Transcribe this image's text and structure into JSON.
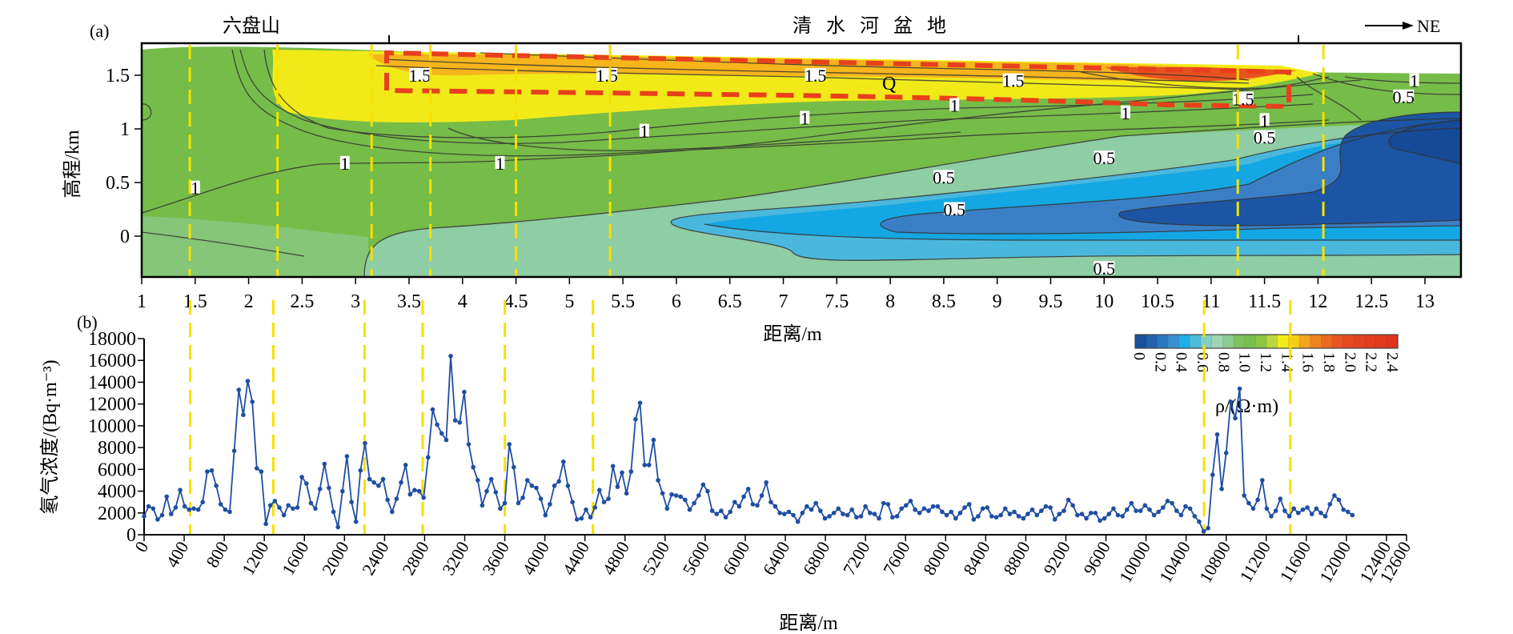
{
  "chart_data": [
    {
      "id": "a",
      "type": "heatmap",
      "panel_label": "(a)",
      "title": "",
      "region_labels": [
        "六盘山",
        "清 水 河 盆 地"
      ],
      "direction_label": "NE",
      "xlabel": "距离/m",
      "ylabel": "高程/km",
      "xlim": [
        1,
        13.33
      ],
      "ylim": [
        -0.38,
        1.8
      ],
      "xticks": [
        "1",
        "1.5",
        "2",
        "2.5",
        "3",
        "3.5",
        "4",
        "4.5",
        "5",
        "5.5",
        "6",
        "6.5",
        "7",
        "7.5",
        "8",
        "8.5",
        "9",
        "9.5",
        "10",
        "10.5",
        "11",
        "11.5",
        "12",
        "12.5",
        "13"
      ],
      "yticks": [
        "0",
        "0.5",
        "1",
        "1.5"
      ],
      "contour_labels": [
        {
          "x": 1.5,
          "y": 0.45,
          "text": "1"
        },
        {
          "x": 2.9,
          "y": 0.68,
          "text": "1"
        },
        {
          "x": 3.6,
          "y": 1.5,
          "text": "1.5"
        },
        {
          "x": 4.35,
          "y": 0.68,
          "text": "1"
        },
        {
          "x": 5.35,
          "y": 1.5,
          "text": "1.5"
        },
        {
          "x": 5.7,
          "y": 0.98,
          "text": "1"
        },
        {
          "x": 7.2,
          "y": 1.1,
          "text": "1"
        },
        {
          "x": 7.3,
          "y": 1.5,
          "text": "1.5"
        },
        {
          "x": 8.6,
          "y": 1.22,
          "text": "1"
        },
        {
          "x": 9.15,
          "y": 1.45,
          "text": "1.5"
        },
        {
          "x": 8.5,
          "y": 0.55,
          "text": "0.5"
        },
        {
          "x": 8.6,
          "y": 0.25,
          "text": "0.5"
        },
        {
          "x": 10.0,
          "y": 0.73,
          "text": "0.5"
        },
        {
          "x": 10.0,
          "y": -0.3,
          "text": "0.5"
        },
        {
          "x": 10.2,
          "y": 1.15,
          "text": "1"
        },
        {
          "x": 11.3,
          "y": 1.28,
          "text": "1.5"
        },
        {
          "x": 11.5,
          "y": 1.08,
          "text": "1"
        },
        {
          "x": 11.5,
          "y": 0.92,
          "text": "0.5"
        },
        {
          "x": 12.9,
          "y": 1.45,
          "text": "1"
        },
        {
          "x": 12.8,
          "y": 1.3,
          "text": "0.5"
        }
      ],
      "annotation_Q": {
        "x": 8.05,
        "y": 1.43,
        "text": "Q"
      },
      "dashed_box": {
        "x0": 3.3,
        "x1": 11.75,
        "note": "Quaternary layer outline"
      },
      "vertical_markers_x": [
        1.45,
        2.27,
        3.15,
        3.7,
        4.5,
        5.38,
        11.25,
        12.05
      ],
      "colorbar": {
        "label": "ρ/(Ω·m)",
        "ticks": [
          "0",
          "0.2",
          "0.4",
          "0.6",
          "0.8",
          "1.0",
          "1.2",
          "1.4",
          "1.6",
          "1.8",
          "2.0",
          "2.2",
          "2.4"
        ],
        "colors": [
          "#1a4f9c",
          "#2262ad",
          "#2a78c2",
          "#3b8fd0",
          "#20aee6",
          "#4cbcd8",
          "#86cdc8",
          "#9fd4b6",
          "#8ccb8f",
          "#7dc163",
          "#79bf4d",
          "#89c643",
          "#b9d63b",
          "#f4ea1a",
          "#f6cd15",
          "#f3a51c",
          "#ee8320",
          "#ea6a21",
          "#e85520",
          "#e54a1f",
          "#e34420",
          "#e23e1f",
          "#e13a1f",
          "#df3520"
        ]
      }
    },
    {
      "id": "b",
      "type": "line",
      "panel_label": "(b)",
      "title": "",
      "xlabel": "距离/m",
      "ylabel": "氡气浓度/(Bq·m⁻³)",
      "xlim": [
        0,
        12600
      ],
      "ylim": [
        0,
        18000
      ],
      "xticks": [
        "0",
        "400",
        "800",
        "1200",
        "1600",
        "2000",
        "2400",
        "2800",
        "3200",
        "3600",
        "4000",
        "4400",
        "4800",
        "5200",
        "5600",
        "6000",
        "6400",
        "6800",
        "7200",
        "7600",
        "8000",
        "8400",
        "8800",
        "9200",
        "9600",
        "10000",
        "10400",
        "10800",
        "11200",
        "11600",
        "12000",
        "12400",
        "12600"
      ],
      "yticks": [
        "0",
        "2000",
        "4000",
        "6000",
        "8000",
        "10000",
        "12000",
        "14000",
        "16000",
        "18000"
      ],
      "vertical_markers_x": [
        460,
        1290,
        2200,
        2780,
        3600,
        4480,
        10580,
        11440
      ],
      "series": [
        {
          "name": "radon",
          "color": "#1f4ea3",
          "x_step": 45,
          "values": [
            1700,
            2600,
            2400,
            1400,
            1800,
            3500,
            1900,
            2500,
            4100,
            2600,
            2300,
            2400,
            2300,
            3000,
            5800,
            5900,
            4500,
            2800,
            2300,
            2100,
            7700,
            13300,
            11000,
            14100,
            12200,
            6100,
            5800,
            1000,
            2700,
            3100,
            2500,
            1800,
            2700,
            2400,
            2500,
            5300,
            4700,
            2900,
            2400,
            4200,
            6500,
            4300,
            2100,
            700,
            4000,
            7200,
            3000,
            1200,
            5900,
            8400,
            5100,
            4800,
            4500,
            5100,
            3200,
            2100,
            3300,
            4800,
            6400,
            3700,
            4100,
            4000,
            3400,
            7100,
            11500,
            10100,
            9300,
            8700,
            16400,
            10500,
            10300,
            13100,
            8300,
            6200,
            5000,
            2700,
            4000,
            5100,
            3900,
            2400,
            2900,
            8300,
            6200,
            2900,
            3400,
            5000,
            4500,
            4300,
            3300,
            1800,
            2800,
            4500,
            4900,
            6700,
            4500,
            3000,
            1400,
            1500,
            2300,
            1600,
            2500,
            4100,
            3000,
            3300,
            6300,
            4400,
            5700,
            3800,
            5800,
            10600,
            12100,
            6400,
            6400,
            8700,
            5000,
            3800,
            2400,
            3700,
            3600,
            3500,
            3200,
            2300,
            2900,
            3600,
            4600,
            4000,
            2200,
            1900,
            2200,
            1600,
            2100,
            3000,
            2600,
            3500,
            4200,
            2800,
            2700,
            3600,
            4800,
            3000,
            2600,
            2000,
            1900,
            2100,
            1800,
            1200,
            2000,
            2600,
            2300,
            2900,
            2200,
            1500,
            1700,
            2000,
            2400,
            1900,
            1800,
            2300,
            1600,
            1700,
            2600,
            2000,
            1900,
            1500,
            2900,
            2800,
            1600,
            1700,
            2400,
            2700,
            3100,
            2300,
            2000,
            2400,
            2200,
            2600,
            2600,
            2100,
            1800,
            2100,
            1500,
            2000,
            2500,
            2800,
            1400,
            1700,
            2400,
            2500,
            1700,
            1600,
            1800,
            2400,
            1900,
            2100,
            1700,
            1500,
            1900,
            2300,
            1800,
            2200,
            2600,
            2500,
            1400,
            1900,
            2200,
            3200,
            2700,
            1800,
            1900,
            1500,
            2000,
            2000,
            1300,
            1500,
            1900,
            2400,
            1800,
            1700,
            2300,
            2900,
            2200,
            2200,
            2700,
            2300,
            1800,
            2100,
            2500,
            3100,
            2900,
            2200,
            1800,
            2600,
            2400,
            1700,
            1200,
            300,
            600,
            5500,
            9200,
            4200,
            7500,
            12200,
            10700,
            13400,
            3600,
            2900,
            2400,
            3200,
            5000,
            2400,
            1700,
            2200,
            3300,
            2200,
            1700,
            2400,
            2000,
            2300,
            2500,
            1900,
            2400,
            2000,
            1700,
            2800,
            3600,
            3200,
            2300,
            2100,
            1800
          ]
        }
      ]
    }
  ]
}
